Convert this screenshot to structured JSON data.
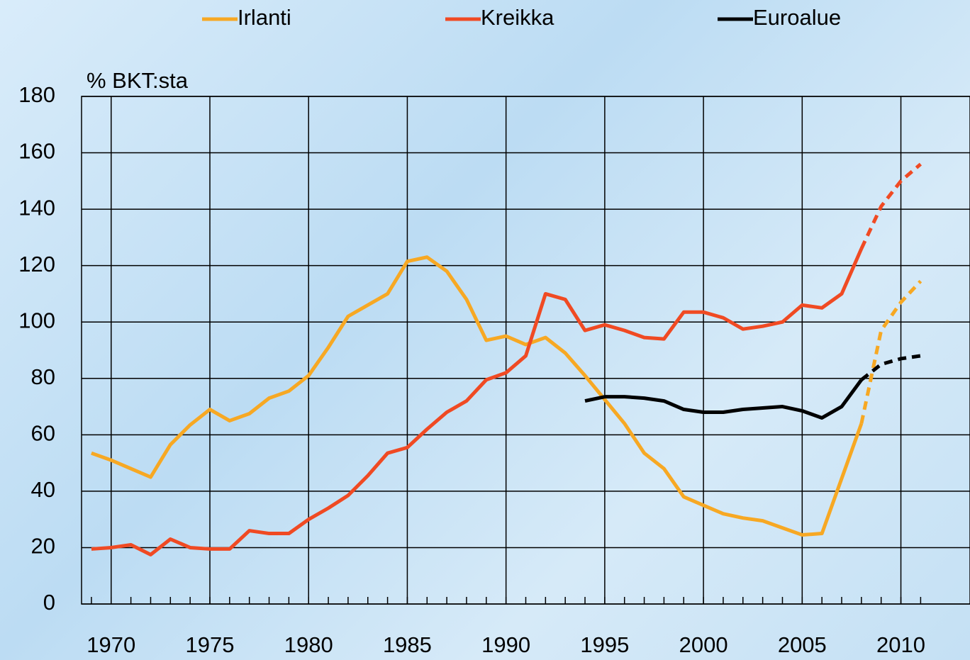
{
  "chart_data": {
    "type": "line",
    "y_label": "% BKT:sta",
    "x": [
      1969,
      1970,
      1971,
      1972,
      1973,
      1974,
      1975,
      1976,
      1977,
      1978,
      1979,
      1980,
      1981,
      1982,
      1983,
      1984,
      1985,
      1986,
      1987,
      1988,
      1989,
      1990,
      1991,
      1992,
      1993,
      1994,
      1995,
      1996,
      1997,
      1998,
      1999,
      2000,
      2001,
      2002,
      2003,
      2004,
      2005,
      2006,
      2007,
      2008,
      2009,
      2010,
      2011
    ],
    "dashed_from": 2008,
    "series": [
      {
        "name": "Irlanti",
        "color": "#f7a823",
        "values": [
          53.5,
          51,
          48,
          45,
          56.5,
          63.5,
          69,
          65,
          67.5,
          73,
          75.5,
          81,
          91,
          102,
          106,
          110,
          121.5,
          123,
          118,
          108,
          93.5,
          95,
          92,
          94.5,
          89,
          81,
          72.5,
          64,
          53.5,
          48,
          38,
          35,
          32,
          30.5,
          29.5,
          27,
          24.5,
          25,
          44.5,
          64,
          97,
          107,
          114.5
        ]
      },
      {
        "name": "Kreikka",
        "color": "#f04a23",
        "values": [
          19.5,
          20,
          21,
          17.5,
          23,
          20,
          19.5,
          19.5,
          26,
          25,
          25,
          30,
          34,
          38.5,
          45.5,
          53.5,
          55.5,
          62,
          68,
          72,
          79.5,
          82,
          88,
          110,
          108,
          97,
          99,
          97,
          94.5,
          94,
          103.5,
          103.5,
          101.5,
          97.5,
          98.5,
          100,
          106,
          105,
          110,
          126,
          141,
          150,
          156
        ]
      },
      {
        "name": "Euroalue",
        "color": "#000000",
        "values": [
          null,
          null,
          null,
          null,
          null,
          null,
          null,
          null,
          null,
          null,
          null,
          null,
          null,
          null,
          null,
          null,
          null,
          null,
          null,
          null,
          null,
          null,
          null,
          null,
          null,
          72,
          73.5,
          73.5,
          73,
          72,
          69,
          68,
          68,
          69,
          69.5,
          70,
          68.5,
          66,
          70,
          79.5,
          85,
          87,
          88
        ]
      }
    ],
    "xlim": [
      1968.5,
      2013.5
    ],
    "xticks": [
      1970,
      1975,
      1980,
      1985,
      1990,
      1995,
      2000,
      2005,
      2010
    ],
    "ylim": [
      0,
      180
    ],
    "yticks": [
      0,
      20,
      40,
      60,
      80,
      100,
      120,
      140,
      160,
      180
    ],
    "grid": true
  }
}
